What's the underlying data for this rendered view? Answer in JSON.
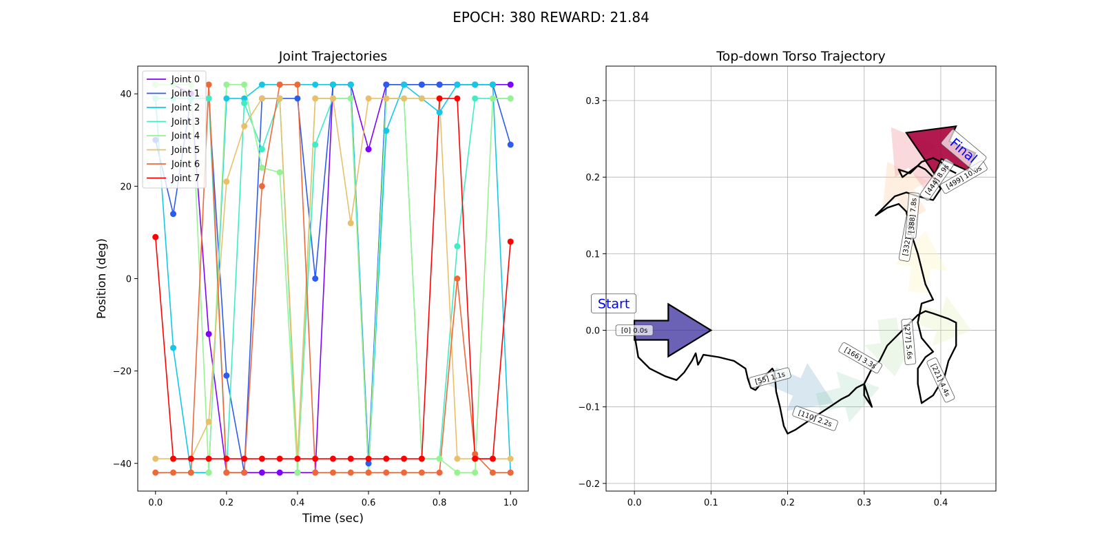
{
  "suptitle": "EPOCH: 380 REWARD:  21.84",
  "chart_data": [
    {
      "type": "line",
      "title": "Joint Trajectories",
      "xlabel": "Time (sec)",
      "ylabel": "Position (deg)",
      "xlim": [
        -0.05,
        1.05
      ],
      "ylim": [
        -46,
        46
      ],
      "xticks": [
        0.0,
        0.2,
        0.4,
        0.6,
        0.8,
        1.0
      ],
      "xtick_labels": [
        "0.0",
        "0.2",
        "0.4",
        "0.6",
        "0.8",
        "1.0"
      ],
      "yticks": [
        -40,
        -20,
        0,
        20,
        40
      ],
      "ytick_labels": [
        "−40",
        "−20",
        "0",
        "20",
        "40"
      ],
      "grid": false,
      "legend_position": "top-left",
      "x": [
        0.0,
        0.05,
        0.1,
        0.15,
        0.2,
        0.25,
        0.3,
        0.35,
        0.4,
        0.45,
        0.5,
        0.55,
        0.6,
        0.65,
        0.7,
        0.75,
        0.8,
        0.85,
        0.9,
        0.95,
        1.0
      ],
      "series": [
        {
          "name": "Joint 0",
          "color": "#8000ff",
          "values": [
            42,
            42,
            40,
            -12,
            -42,
            -42,
            -42,
            -42,
            -42,
            -42,
            42,
            42,
            28,
            42,
            42,
            42,
            42,
            42,
            42,
            42,
            42
          ]
        },
        {
          "name": "Joint 1",
          "color": "#2c5bf0",
          "values": [
            30,
            14,
            39,
            39,
            -21,
            -42,
            39,
            39,
            39,
            0,
            42,
            42,
            -40,
            42,
            42,
            42,
            42,
            42,
            42,
            42,
            29
          ]
        },
        {
          "name": "Joint 2",
          "color": "#12c8e6",
          "values": [
            39,
            -15,
            -42,
            -42,
            39,
            39,
            42,
            42,
            42,
            42,
            42,
            42,
            -42,
            32,
            42,
            39,
            36,
            42,
            42,
            42,
            -42
          ]
        },
        {
          "name": "Joint 3",
          "color": "#40ecc4",
          "values": [
            39,
            39,
            39,
            39,
            -42,
            38,
            28,
            39,
            -42,
            29,
            39,
            39,
            -42,
            39,
            39,
            -39,
            -39,
            7,
            39,
            39,
            39
          ]
        },
        {
          "name": "Joint 4",
          "color": "#97f391",
          "values": [
            42,
            42,
            42,
            -42,
            42,
            42,
            24,
            23,
            -42,
            39,
            39,
            39,
            -42,
            39,
            39,
            -39,
            -39,
            -42,
            -42,
            39,
            39
          ]
        },
        {
          "name": "Joint 5",
          "color": "#e8c06a",
          "values": [
            -39,
            -39,
            -39,
            -31,
            21,
            33,
            39,
            39,
            -39,
            39,
            39,
            12,
            39,
            39,
            39,
            39,
            39,
            -39,
            -39,
            -39,
            -39
          ]
        },
        {
          "name": "Joint 6",
          "color": "#f06838",
          "values": [
            -42,
            -42,
            -42,
            42,
            -42,
            -42,
            20,
            42,
            42,
            -42,
            -42,
            -42,
            -42,
            -42,
            -42,
            -42,
            -42,
            0,
            -38,
            -42,
            -42
          ]
        },
        {
          "name": "Joint 7",
          "color": "#ff0000",
          "values": [
            9,
            -39,
            -39,
            -39,
            -39,
            -39,
            -39,
            -39,
            -39,
            -39,
            -39,
            -39,
            -39,
            -39,
            -39,
            -39,
            39,
            39,
            -39,
            -39,
            8
          ]
        }
      ]
    },
    {
      "type": "line",
      "title": "Top-down Torso Trajectory",
      "xlim": [
        -0.037,
        0.472
      ],
      "ylim": [
        -0.21,
        0.345
      ],
      "xticks": [
        0.0,
        0.1,
        0.2,
        0.3,
        0.4
      ],
      "xtick_labels": [
        "0.0",
        "0.1",
        "0.2",
        "0.3",
        "0.4"
      ],
      "yticks": [
        -0.2,
        -0.1,
        0.0,
        0.1,
        0.2,
        0.3
      ],
      "ytick_labels": [
        "−0.2",
        "−0.1",
        "0.0",
        "0.1",
        "0.2",
        "0.3"
      ],
      "grid": true,
      "path": [
        [
          0.0,
          -0.005
        ],
        [
          0.005,
          -0.035
        ],
        [
          0.02,
          -0.05
        ],
        [
          0.04,
          -0.06
        ],
        [
          0.055,
          -0.065
        ],
        [
          0.065,
          -0.055
        ],
        [
          0.075,
          -0.04
        ],
        [
          0.08,
          -0.03
        ],
        [
          0.083,
          -0.045
        ],
        [
          0.086,
          -0.04
        ],
        [
          0.09,
          -0.032
        ],
        [
          0.11,
          -0.035
        ],
        [
          0.13,
          -0.04
        ],
        [
          0.145,
          -0.05
        ],
        [
          0.148,
          -0.063
        ],
        [
          0.152,
          -0.075
        ],
        [
          0.158,
          -0.078
        ],
        [
          0.165,
          -0.07
        ],
        [
          0.17,
          -0.06
        ],
        [
          0.18,
          -0.05
        ],
        [
          0.183,
          -0.055
        ],
        [
          0.185,
          -0.08
        ],
        [
          0.19,
          -0.1
        ],
        [
          0.195,
          -0.125
        ],
        [
          0.2,
          -0.135
        ],
        [
          0.21,
          -0.13
        ],
        [
          0.225,
          -0.12
        ],
        [
          0.24,
          -0.11
        ],
        [
          0.255,
          -0.1
        ],
        [
          0.27,
          -0.09
        ],
        [
          0.28,
          -0.085
        ],
        [
          0.29,
          -0.075
        ],
        [
          0.3,
          -0.07
        ],
        [
          0.3,
          -0.085
        ],
        [
          0.31,
          -0.1
        ],
        [
          0.3,
          -0.07
        ],
        [
          0.31,
          -0.05
        ],
        [
          0.32,
          -0.04
        ],
        [
          0.33,
          -0.02
        ],
        [
          0.34,
          -0.01
        ],
        [
          0.35,
          0.0
        ],
        [
          0.36,
          0.01
        ],
        [
          0.37,
          0.02
        ],
        [
          0.38,
          0.025
        ],
        [
          0.39,
          0.022
        ],
        [
          0.41,
          0.015
        ],
        [
          0.42,
          0.01
        ],
        [
          0.42,
          -0.02
        ],
        [
          0.41,
          -0.04
        ],
        [
          0.405,
          -0.06
        ],
        [
          0.39,
          -0.085
        ],
        [
          0.375,
          -0.095
        ],
        [
          0.37,
          -0.07
        ],
        [
          0.37,
          -0.05
        ],
        [
          0.38,
          -0.035
        ],
        [
          0.39,
          -0.028
        ],
        [
          0.375,
          -0.01
        ],
        [
          0.37,
          0.01
        ],
        [
          0.375,
          0.035
        ],
        [
          0.39,
          0.04
        ],
        [
          0.38,
          0.06
        ],
        [
          0.37,
          0.1
        ],
        [
          0.36,
          0.13
        ],
        [
          0.355,
          0.155
        ],
        [
          0.345,
          0.165
        ],
        [
          0.33,
          0.16
        ],
        [
          0.315,
          0.15
        ],
        [
          0.32,
          0.155
        ],
        [
          0.34,
          0.175
        ],
        [
          0.355,
          0.18
        ],
        [
          0.37,
          0.175
        ],
        [
          0.39,
          0.17
        ],
        [
          0.4,
          0.185
        ],
        [
          0.39,
          0.2
        ],
        [
          0.38,
          0.21
        ],
        [
          0.37,
          0.215
        ],
        [
          0.35,
          0.2
        ],
        [
          0.345,
          0.21
        ],
        [
          0.36,
          0.205
        ],
        [
          0.375,
          0.22
        ],
        [
          0.39,
          0.225
        ],
        [
          0.4,
          0.22
        ],
        [
          0.41,
          0.21
        ],
        [
          0.42,
          0.205
        ]
      ],
      "arrows": [
        {
          "from": [
            0.0,
            0.0
          ],
          "to": [
            0.1,
            0.0
          ],
          "color": "#3a2d9e",
          "opacity": 0.75,
          "edge": true
        },
        {
          "from": [
            0.18,
            -0.06
          ],
          "to": [
            0.26,
            -0.095
          ],
          "color": "#7fb0cc",
          "opacity": 0.3,
          "edge": false
        },
        {
          "from": [
            0.24,
            -0.095
          ],
          "to": [
            0.32,
            -0.075
          ],
          "color": "#88ccaa",
          "opacity": 0.22,
          "edge": false
        },
        {
          "from": [
            0.33,
            0.015
          ],
          "to": [
            0.34,
            -0.06
          ],
          "color": "#b5dca8",
          "opacity": 0.25,
          "edge": false
        },
        {
          "from": [
            0.37,
            0.02
          ],
          "to": [
            0.44,
            0.0
          ],
          "color": "#e0f0b0",
          "opacity": 0.28,
          "edge": false
        },
        {
          "from": [
            0.37,
            0.05
          ],
          "to": [
            0.38,
            0.13
          ],
          "color": "#fdf4c8",
          "opacity": 0.4,
          "edge": false
        },
        {
          "from": [
            0.37,
            0.15
          ],
          "to": [
            0.33,
            0.22
          ],
          "color": "#fbd0a8",
          "opacity": 0.35,
          "edge": false
        },
        {
          "from": [
            0.39,
            0.19
          ],
          "to": [
            0.335,
            0.265
          ],
          "color": "#f0a0a8",
          "opacity": 0.4,
          "edge": false
        },
        {
          "from": [
            0.44,
            0.22
          ],
          "to": [
            0.355,
            0.258
          ],
          "color": "#a8003c",
          "opacity": 0.9,
          "edge": true
        }
      ],
      "start_label": {
        "text": "Start",
        "x": -0.027,
        "y": 0.035
      },
      "final_label": {
        "text": "Final",
        "x": 0.43,
        "y": 0.235,
        "angle": 40
      },
      "step_labels": [
        {
          "text": "[0] 0.0s",
          "x": 0.0,
          "y": 0.0,
          "angle": 0
        },
        {
          "text": "[55] 1.1s",
          "x": 0.177,
          "y": -0.062,
          "angle": 15
        },
        {
          "text": "[110] 2.2s",
          "x": 0.236,
          "y": -0.115,
          "angle": -20
        },
        {
          "text": "[166] 3.3s",
          "x": 0.295,
          "y": -0.036,
          "angle": -30
        },
        {
          "text": "[221] 4.4s",
          "x": 0.4,
          "y": -0.065,
          "angle": -65
        },
        {
          "text": "[277] 5.6s",
          "x": 0.358,
          "y": -0.015,
          "angle": -85
        },
        {
          "text": "[332] 6.7s",
          "x": 0.357,
          "y": 0.12,
          "angle": 80
        },
        {
          "text": "[388] 7.8s",
          "x": 0.363,
          "y": 0.15,
          "angle": 85
        },
        {
          "text": "[444] 8.9s",
          "x": 0.395,
          "y": 0.197,
          "angle": 55
        },
        {
          "text": "[499] 10.0s",
          "x": 0.43,
          "y": 0.2,
          "angle": 30
        }
      ]
    }
  ]
}
